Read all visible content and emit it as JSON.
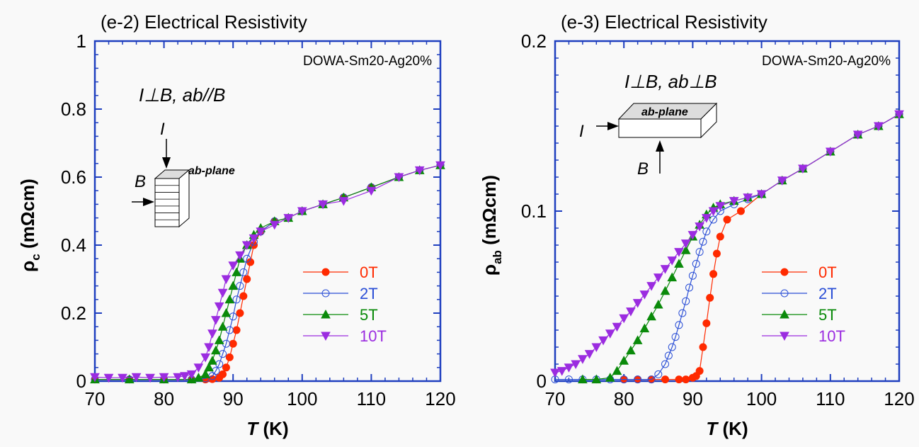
{
  "colors": {
    "frame": "#1f3fbf",
    "zero_T": "#ff2a00",
    "two_T": "#2b4fd6",
    "five_T": "#0a8a0a",
    "ten_T": "#9b2ce0"
  },
  "chart_data": [
    {
      "type": "line",
      "title": "(e-2) Electrical Resistivity",
      "sample": "DOWA-Sm20-Ag20%",
      "config_label": "I⊥B, ab//B",
      "inset": {
        "I": "I",
        "B": "B",
        "plane": "ab-plane"
      },
      "xlabel": "T",
      "xunit": "(K)",
      "ylabel": "ρ",
      "ylabel_sub": "c",
      "yunit": "(mΩcm)",
      "xlim": [
        70,
        120
      ],
      "ylim": [
        0,
        1
      ],
      "xticks": [
        "70",
        "80",
        "90",
        "100",
        "110",
        "120"
      ],
      "yticks": [
        "0",
        "0.2",
        "0.4",
        "0.6",
        "0.8",
        "1"
      ],
      "legend_position": "right-middle",
      "series": [
        {
          "name": "0T",
          "marker": "circle-filled",
          "x": [
            70,
            75,
            80,
            84,
            86,
            87,
            88,
            88.5,
            89,
            89.5,
            90,
            90.5,
            91,
            91.5,
            92,
            92.5,
            93,
            94,
            96,
            98,
            100,
            103,
            106,
            110,
            114,
            117,
            120
          ],
          "y": [
            0.005,
            0.005,
            0.005,
            0.005,
            0.005,
            0.006,
            0.01,
            0.02,
            0.04,
            0.07,
            0.11,
            0.15,
            0.2,
            0.25,
            0.3,
            0.35,
            0.4,
            0.44,
            0.47,
            0.48,
            0.5,
            0.52,
            0.54,
            0.57,
            0.6,
            0.62,
            0.635
          ]
        },
        {
          "name": "2T",
          "marker": "circle-open",
          "x": [
            70,
            75,
            80,
            84,
            86,
            87,
            87.5,
            88,
            88.5,
            89,
            89.5,
            90,
            90.5,
            91,
            91.5,
            92,
            93,
            94,
            96,
            98,
            100,
            103,
            106,
            110,
            114,
            117,
            120
          ],
          "y": [
            0.005,
            0.005,
            0.005,
            0.005,
            0.008,
            0.015,
            0.03,
            0.05,
            0.08,
            0.11,
            0.15,
            0.19,
            0.24,
            0.28,
            0.32,
            0.36,
            0.41,
            0.44,
            0.47,
            0.48,
            0.5,
            0.52,
            0.54,
            0.57,
            0.6,
            0.62,
            0.635
          ]
        },
        {
          "name": "5T",
          "marker": "triangle-up",
          "x": [
            70,
            75,
            80,
            84,
            85,
            86,
            86.5,
            87,
            87.5,
            88,
            88.5,
            89,
            89.5,
            90,
            90.5,
            91,
            92,
            93,
            94,
            96,
            98,
            100,
            103,
            106,
            110,
            114,
            117,
            120
          ],
          "y": [
            0.005,
            0.005,
            0.005,
            0.005,
            0.01,
            0.02,
            0.04,
            0.06,
            0.09,
            0.12,
            0.16,
            0.2,
            0.24,
            0.28,
            0.32,
            0.36,
            0.4,
            0.43,
            0.45,
            0.47,
            0.48,
            0.5,
            0.52,
            0.54,
            0.57,
            0.6,
            0.62,
            0.635
          ]
        },
        {
          "name": "10T",
          "marker": "triangle-down",
          "x": [
            70,
            72,
            74,
            76,
            78,
            80,
            82,
            83,
            84,
            85,
            86,
            86.5,
            87,
            87.5,
            88,
            88.5,
            89,
            90,
            91,
            92,
            93,
            94,
            96,
            98,
            100,
            103,
            106,
            110,
            114,
            117,
            120
          ],
          "y": [
            0.012,
            0.01,
            0.01,
            0.012,
            0.01,
            0.012,
            0.012,
            0.015,
            0.02,
            0.04,
            0.07,
            0.1,
            0.14,
            0.18,
            0.22,
            0.26,
            0.3,
            0.34,
            0.37,
            0.4,
            0.42,
            0.44,
            0.46,
            0.48,
            0.5,
            0.52,
            0.53,
            0.56,
            0.6,
            0.62,
            0.635
          ]
        }
      ]
    },
    {
      "type": "line",
      "title": "(e-3) Electrical Resistivity",
      "sample": "DOWA-Sm20-Ag20%",
      "config_label": "I⊥B, ab⊥B",
      "inset": {
        "I": "I",
        "B": "B",
        "plane": "ab-plane"
      },
      "xlabel": "T",
      "xunit": "(K)",
      "ylabel": "ρ",
      "ylabel_sub": "ab",
      "yunit": "(mΩcm)",
      "xlim": [
        70,
        120
      ],
      "ylim": [
        0,
        0.2
      ],
      "xticks": [
        "70",
        "80",
        "90",
        "100",
        "110",
        "120"
      ],
      "yticks": [
        "0",
        "0.1",
        "0.2"
      ],
      "legend_position": "right-middle",
      "series": [
        {
          "name": "0T",
          "marker": "circle-filled",
          "x": [
            80,
            82,
            84,
            86,
            88,
            89,
            90,
            90.5,
            91,
            91.5,
            92,
            92.5,
            93,
            93.5,
            94,
            95,
            97,
            100,
            103,
            106,
            110,
            114,
            117,
            120
          ],
          "y": [
            0.001,
            0.001,
            0.001,
            0.001,
            0.001,
            0.001,
            0.002,
            0.003,
            0.006,
            0.02,
            0.034,
            0.049,
            0.063,
            0.075,
            0.085,
            0.095,
            0.1,
            0.11,
            0.118,
            0.125,
            0.135,
            0.145,
            0.15,
            0.157
          ]
        },
        {
          "name": "2T",
          "marker": "circle-open",
          "x": [
            70,
            72,
            74,
            76,
            78,
            80,
            82,
            84,
            85,
            86,
            86.5,
            87,
            87.5,
            88,
            88.5,
            89,
            89.5,
            90,
            90.5,
            91,
            91.5,
            92,
            93,
            94,
            96,
            98,
            100,
            103,
            106,
            110,
            114,
            117,
            120
          ],
          "y": [
            0.001,
            0.001,
            0.001,
            0.001,
            0.001,
            0.001,
            0.001,
            0.001,
            0.004,
            0.01,
            0.015,
            0.02,
            0.026,
            0.033,
            0.04,
            0.047,
            0.055,
            0.062,
            0.069,
            0.076,
            0.082,
            0.088,
            0.095,
            0.1,
            0.104,
            0.107,
            0.11,
            0.118,
            0.125,
            0.135,
            0.145,
            0.15,
            0.157
          ]
        },
        {
          "name": "5T",
          "marker": "triangle-up",
          "x": [
            74,
            76,
            78,
            79,
            80,
            81,
            82,
            83,
            84,
            85,
            86,
            87,
            88,
            89,
            90,
            91,
            92,
            93,
            94,
            96,
            98,
            100,
            103,
            106,
            110,
            114,
            117,
            120
          ],
          "y": [
            0.001,
            0.001,
            0.002,
            0.006,
            0.012,
            0.018,
            0.024,
            0.031,
            0.038,
            0.045,
            0.053,
            0.061,
            0.069,
            0.077,
            0.085,
            0.092,
            0.098,
            0.102,
            0.104,
            0.106,
            0.108,
            0.11,
            0.118,
            0.125,
            0.135,
            0.145,
            0.15,
            0.157
          ]
        },
        {
          "name": "10T",
          "marker": "triangle-down",
          "x": [
            70,
            71,
            72,
            73,
            74,
            75,
            76,
            77,
            78,
            79,
            80,
            81,
            82,
            83,
            84,
            85,
            86,
            87,
            88,
            89,
            90,
            91,
            92,
            93,
            94,
            96,
            98,
            100,
            103,
            106,
            110,
            114,
            117,
            120
          ],
          "y": [
            0.005,
            0.006,
            0.008,
            0.01,
            0.013,
            0.016,
            0.02,
            0.024,
            0.028,
            0.032,
            0.037,
            0.041,
            0.046,
            0.051,
            0.056,
            0.061,
            0.066,
            0.071,
            0.076,
            0.081,
            0.086,
            0.091,
            0.096,
            0.1,
            0.103,
            0.106,
            0.108,
            0.11,
            0.118,
            0.125,
            0.135,
            0.145,
            0.15,
            0.157
          ]
        }
      ]
    }
  ]
}
